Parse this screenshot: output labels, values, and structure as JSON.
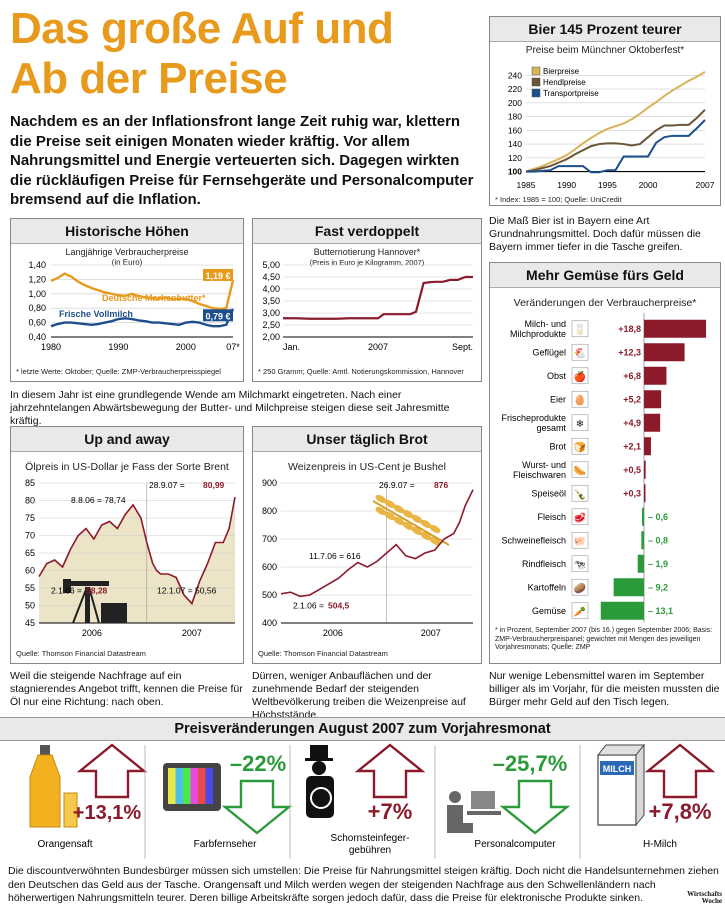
{
  "headline": {
    "line1": "Das große Auf und",
    "line2": "Ab der Preise"
  },
  "intro": "Nachdem es an der Inflationsfront lange Zeit ruhig war, klettern die Preise seit einigen Monaten wieder kräftig. Vor allem Nahrungsmittel und Energie verteuerten sich. Dagegen wirkten die rückläufigen Preise für Fernsehgeräte und Personalcomputer bremsend auf die Inflation.",
  "colors": {
    "accent": "#e89a1d",
    "bier": "#d8b45a",
    "hendl": "#6a5538",
    "transport": "#1d4f8c",
    "milk": "#1d4f8c",
    "red": "#8b1a2b",
    "green": "#2a9a3a",
    "oil_fill": "#ebe4c6"
  },
  "bier": {
    "title": "Bier 145 Prozent teurer",
    "subtitle": "Preise beim Münchner Oktoberfest*",
    "source": "* Index: 1985 = 100; Quelle: UniCredit",
    "caption": "Die Maß Bier ist in Bayern eine Art Grundnahrungsmittel. Doch dafür müssen die Bayern immer tiefer in die Tasche greifen."
  },
  "hist": {
    "title": "Historische Höhen",
    "subtitle1": "Langjährige Verbraucherpreise",
    "subtitle2": "(in Euro)",
    "source": "* letzte Werte: Oktober; Quelle: ZMP-Verbraucherpreisspiegel",
    "butter_label": "Deutsche Markenbutter*",
    "milk_label": "Frische Vollmilch",
    "butter_value": "1,19 €",
    "milk_value": "0,79 €"
  },
  "verd": {
    "title": "Fast verdoppelt",
    "subtitle1": "Butternotierung Hannover*",
    "subtitle2": "(Preis in Euro je Kilogramm, 2007)",
    "source": "* 250 Gramm; Quelle: Amtl. Notierungskommission, Hannover"
  },
  "middle_caption": "In diesem Jahr ist eine grundlegende Wende am Milchmarkt eingetreten. Nach einer jahrzehntelangen Abwärtsbewegung der Butter- und Milchpreise steigen diese seit Jahresmitte kräftig.",
  "oil": {
    "title": "Up and away",
    "subtitle": "Ölpreis in US-Dollar je Fass der Sorte Brent",
    "source": "Quelle: Thomson Financial Datastream",
    "caption": "Weil die steigende Nachfrage auf ein stagnierendes Angebot trifft, kennen die Preise für Öl nur eine Richtung: nach oben.",
    "ann_high_date": "8.8.06 = 78,74",
    "ann_last_date": "28.9.07 = ",
    "ann_last_val": "80,99",
    "ann_low1_date": "2.1.06 = ",
    "ann_low1_val": "58,28",
    "ann_low2": "12.1.07 = 50,56"
  },
  "brot": {
    "title": "Unser täglich Brot",
    "subtitle": "Weizenpreis in US-Cent je Bushel",
    "source": "Quelle: Thomson Financial Datastream",
    "caption": "Dürren, weniger Anbauflächen und der zunehmende Bedarf der steigenden Weltbevölkerung treiben die Weizenpreise auf Höchststände.",
    "ann_last_date": "26.9.07 = ",
    "ann_last_val": "876",
    "ann_mid": "11.7.06 = 616",
    "ann_low_date": "2.1.06 = ",
    "ann_low_val": "504,5"
  },
  "gemuese": {
    "title": "Mehr Gemüse fürs Geld",
    "subtitle": "Veränderungen der Verbraucherpreise*",
    "source": "* in Prozent, September 2007 (bis 16.) gegen September 2006; Basis: ZMP-Verbraucherpreispanel; gewichtet mit Mengen des jeweiligen Vorjahresmonats; Quelle: ZMP",
    "caption": "Nur wenige Lebensmittel waren im September billiger als im Vorjahr, für die meisten mussten die Bürger mehr Geld auf den Tisch legen."
  },
  "strip": {
    "title": "Preisveränderungen August 2007 zum Vorjahresmonat",
    "items": [
      {
        "label": "Orangensaft",
        "value": "+13,1%",
        "icon": "juice-bottle-icon"
      },
      {
        "label": "Farbfernseher",
        "value": "–22%",
        "icon": "tv-icon"
      },
      {
        "label": "Schornsteinfeger-\ngebühren",
        "value": "+7%",
        "icon": "chimney-sweep-icon"
      },
      {
        "label": "Personalcomputer",
        "value": "–25,7%",
        "icon": "computer-user-icon"
      },
      {
        "label": "H-Milch",
        "value": "+7,8%",
        "icon": "milk-carton-icon"
      }
    ],
    "milk_carton_text": "MILCH"
  },
  "footer": "Die discountverwöhnten Bundesbürger müssen sich umstellen: Die Preise für Nahrungsmittel steigen kräftig. Doch nicht die Handelsunternehmen ziehen den Deutschen das Geld aus der Tasche. Orangensaft und Milch werden wegen der steigenden Nachfrage aus den Schwellenländern nach höherwertigen Nahrungsmitteln teurer. Deren billige Arbeitskräfte sorgen jedoch dafür, dass die Preise für elektronische Produkte sinken.",
  "logo": {
    "line1": "Wirtschafts",
    "line2": "Woche"
  },
  "chart_data": [
    {
      "id": "bier",
      "type": "line",
      "title": "Bier 145 Prozent teurer",
      "subtitle": "Preise beim Münchner Oktoberfest*",
      "x": [
        1985,
        1986,
        1987,
        1988,
        1989,
        1990,
        1991,
        1992,
        1993,
        1994,
        1995,
        1996,
        1997,
        1998,
        1999,
        2000,
        2001,
        2002,
        2003,
        2004,
        2005,
        2006,
        2007
      ],
      "xticks": [
        "1985",
        "1990",
        "1995",
        "2000",
        "2007"
      ],
      "yticks": [
        "100",
        "120",
        "140",
        "160",
        "180",
        "200",
        "220",
        "240"
      ],
      "ylim": [
        95,
        255
      ],
      "series": [
        {
          "name": "Bierpreise",
          "values": [
            100,
            104,
            108,
            113,
            118,
            124,
            132,
            141,
            149,
            156,
            162,
            166,
            170,
            176,
            184,
            193,
            201,
            210,
            218,
            225,
            232,
            238,
            245
          ]
        },
        {
          "name": "Hendlpreise",
          "values": [
            100,
            102,
            105,
            108,
            113,
            118,
            125,
            131,
            137,
            140,
            141,
            141,
            140,
            138,
            140,
            150,
            160,
            167,
            167,
            168,
            168,
            178,
            190
          ]
        },
        {
          "name": "Transportpreise",
          "values": [
            100,
            100,
            101,
            102,
            108,
            108,
            108,
            108,
            99,
            99,
            102,
            102,
            122,
            122,
            122,
            122,
            142,
            150,
            152,
            152,
            152,
            163,
            175
          ]
        }
      ]
    },
    {
      "id": "hist",
      "type": "line",
      "title": "Historische Höhen",
      "subtitle": "Langjährige Verbraucherpreise (in Euro)",
      "x": [
        1980,
        1981,
        1982,
        1983,
        1984,
        1985,
        1986,
        1987,
        1988,
        1989,
        1990,
        1991,
        1992,
        1993,
        1994,
        1995,
        1996,
        1997,
        1998,
        1999,
        2000,
        2001,
        2002,
        2003,
        2004,
        2005,
        2006,
        2007
      ],
      "xticks": [
        "1980",
        "1990",
        "2000",
        "07*"
      ],
      "yticks": [
        "0,40",
        "0,60",
        "0,80",
        "1,00",
        "1,20",
        "1,40"
      ],
      "ylim": [
        0.4,
        1.4
      ],
      "series": [
        {
          "name": "Deutsche Markenbutter*",
          "values": [
            1.18,
            1.22,
            1.28,
            1.24,
            1.17,
            1.12,
            1.08,
            1.05,
            1.02,
            1.0,
            0.98,
            0.97,
            1.0,
            0.97,
            0.95,
            0.94,
            0.93,
            0.95,
            0.92,
            0.93,
            0.93,
            0.9,
            0.86,
            0.83,
            0.8,
            0.79,
            0.8,
            1.19
          ]
        },
        {
          "name": "Frische Vollmilch",
          "values": [
            0.55,
            0.58,
            0.6,
            0.6,
            0.59,
            0.58,
            0.57,
            0.58,
            0.6,
            0.62,
            0.65,
            0.66,
            0.65,
            0.63,
            0.62,
            0.6,
            0.6,
            0.59,
            0.58,
            0.57,
            0.6,
            0.61,
            0.6,
            0.57,
            0.55,
            0.55,
            0.57,
            0.79
          ]
        }
      ]
    },
    {
      "id": "verd",
      "type": "line",
      "title": "Fast verdoppelt",
      "subtitle": "Butternotierung Hannover* (Preis in Euro je Kilogramm, 2007)",
      "xticks": [
        "Jan.",
        "2007",
        "Sept."
      ],
      "yticks": [
        "2,00",
        "2,50",
        "3,00",
        "3,50",
        "4,00",
        "4,50",
        "5,00"
      ],
      "ylim": [
        2.0,
        5.0
      ],
      "series": [
        {
          "name": "Butternotierung",
          "x": [
            0,
            0.07,
            0.14,
            0.21,
            0.28,
            0.35,
            0.42,
            0.5,
            0.53,
            0.56,
            0.6,
            0.64,
            0.67,
            0.7,
            0.74,
            0.77,
            0.8,
            0.84,
            0.88,
            0.92,
            0.96,
            1.0
          ],
          "values": [
            2.78,
            2.78,
            2.76,
            2.76,
            2.76,
            2.78,
            2.78,
            2.78,
            2.95,
            2.95,
            2.95,
            2.95,
            2.95,
            3.05,
            4.25,
            4.28,
            4.3,
            4.3,
            4.38,
            4.38,
            4.5,
            4.5
          ]
        }
      ]
    },
    {
      "id": "oil",
      "type": "area",
      "title": "Up and away",
      "subtitle": "Ölpreis in US-Dollar je Fass der Sorte Brent",
      "xticks": [
        "2006",
        "2007"
      ],
      "yticks": [
        "45",
        "50",
        "55",
        "60",
        "65",
        "70",
        "75",
        "80",
        "85"
      ],
      "ylim": [
        45,
        85
      ],
      "series": [
        {
          "name": "Brent",
          "x": [
            0,
            0.04,
            0.08,
            0.12,
            0.16,
            0.2,
            0.24,
            0.28,
            0.32,
            0.36,
            0.4,
            0.44,
            0.48,
            0.52,
            0.55,
            0.58,
            0.6,
            0.62,
            0.66,
            0.7,
            0.74,
            0.78,
            0.82,
            0.86,
            0.9,
            0.94,
            0.97,
            1.0
          ],
          "values": [
            58.28,
            62,
            63,
            61,
            66,
            70,
            72,
            69,
            73,
            74,
            72,
            76,
            78.74,
            75,
            68,
            62,
            60,
            59,
            59,
            58,
            53,
            50.56,
            57,
            62,
            68,
            68,
            72,
            80.99
          ]
        }
      ]
    },
    {
      "id": "brot",
      "type": "line",
      "title": "Unser täglich Brot",
      "subtitle": "Weizenpreis in US-Cent je Bushel",
      "xticks": [
        "2006",
        "2007"
      ],
      "yticks": [
        "400",
        "500",
        "600",
        "700",
        "800",
        "900"
      ],
      "ylim": [
        400,
        900
      ],
      "series": [
        {
          "name": "Weizen",
          "x": [
            0,
            0.05,
            0.1,
            0.15,
            0.2,
            0.25,
            0.3,
            0.35,
            0.4,
            0.45,
            0.5,
            0.55,
            0.6,
            0.65,
            0.7,
            0.75,
            0.8,
            0.85,
            0.9,
            0.93,
            0.96,
            1.0
          ],
          "values": [
            504.5,
            510,
            495,
            500,
            520,
            540,
            560,
            590,
            616,
            600,
            620,
            650,
            680,
            640,
            630,
            650,
            660,
            700,
            720,
            760,
            820,
            876
          ]
        }
      ]
    },
    {
      "id": "gemuese",
      "type": "bar",
      "title": "Mehr Gemüse fürs Geld",
      "subtitle": "Veränderungen der Verbraucherpreise*",
      "categories": [
        "Milch- und Milchprodukte",
        "Geflügel",
        "Obst",
        "Eier",
        "Frischeprodukte gesamt",
        "Brot",
        "Wurst- und Fleischwaren",
        "Speiseöl",
        "Fleisch",
        "Schweinefleisch",
        "Rindfleisch",
        "Kartoffeln",
        "Gemüse"
      ],
      "values": [
        18.8,
        12.3,
        6.8,
        5.2,
        4.9,
        2.1,
        0.5,
        0.3,
        -0.6,
        -0.8,
        -1.9,
        -9.2,
        -13.1
      ],
      "labels": [
        "+18,8",
        "+12,3",
        "+6,8",
        "+5,2",
        "+4,9",
        "+2,1",
        "+0,5",
        "+0,3",
        "– 0,6",
        "– 0,8",
        "– 1,9",
        "– 9,2",
        "– 13,1"
      ],
      "icons": [
        "milk-icon",
        "chicken-icon",
        "apple-icon",
        "egg-icon",
        "snowflake-icon",
        "bread-icon",
        "sausage-icon",
        "oil-bottle-icon",
        "meat-icon",
        "pig-icon",
        "cow-icon",
        "potato-icon",
        "vegetable-icon"
      ]
    }
  ]
}
